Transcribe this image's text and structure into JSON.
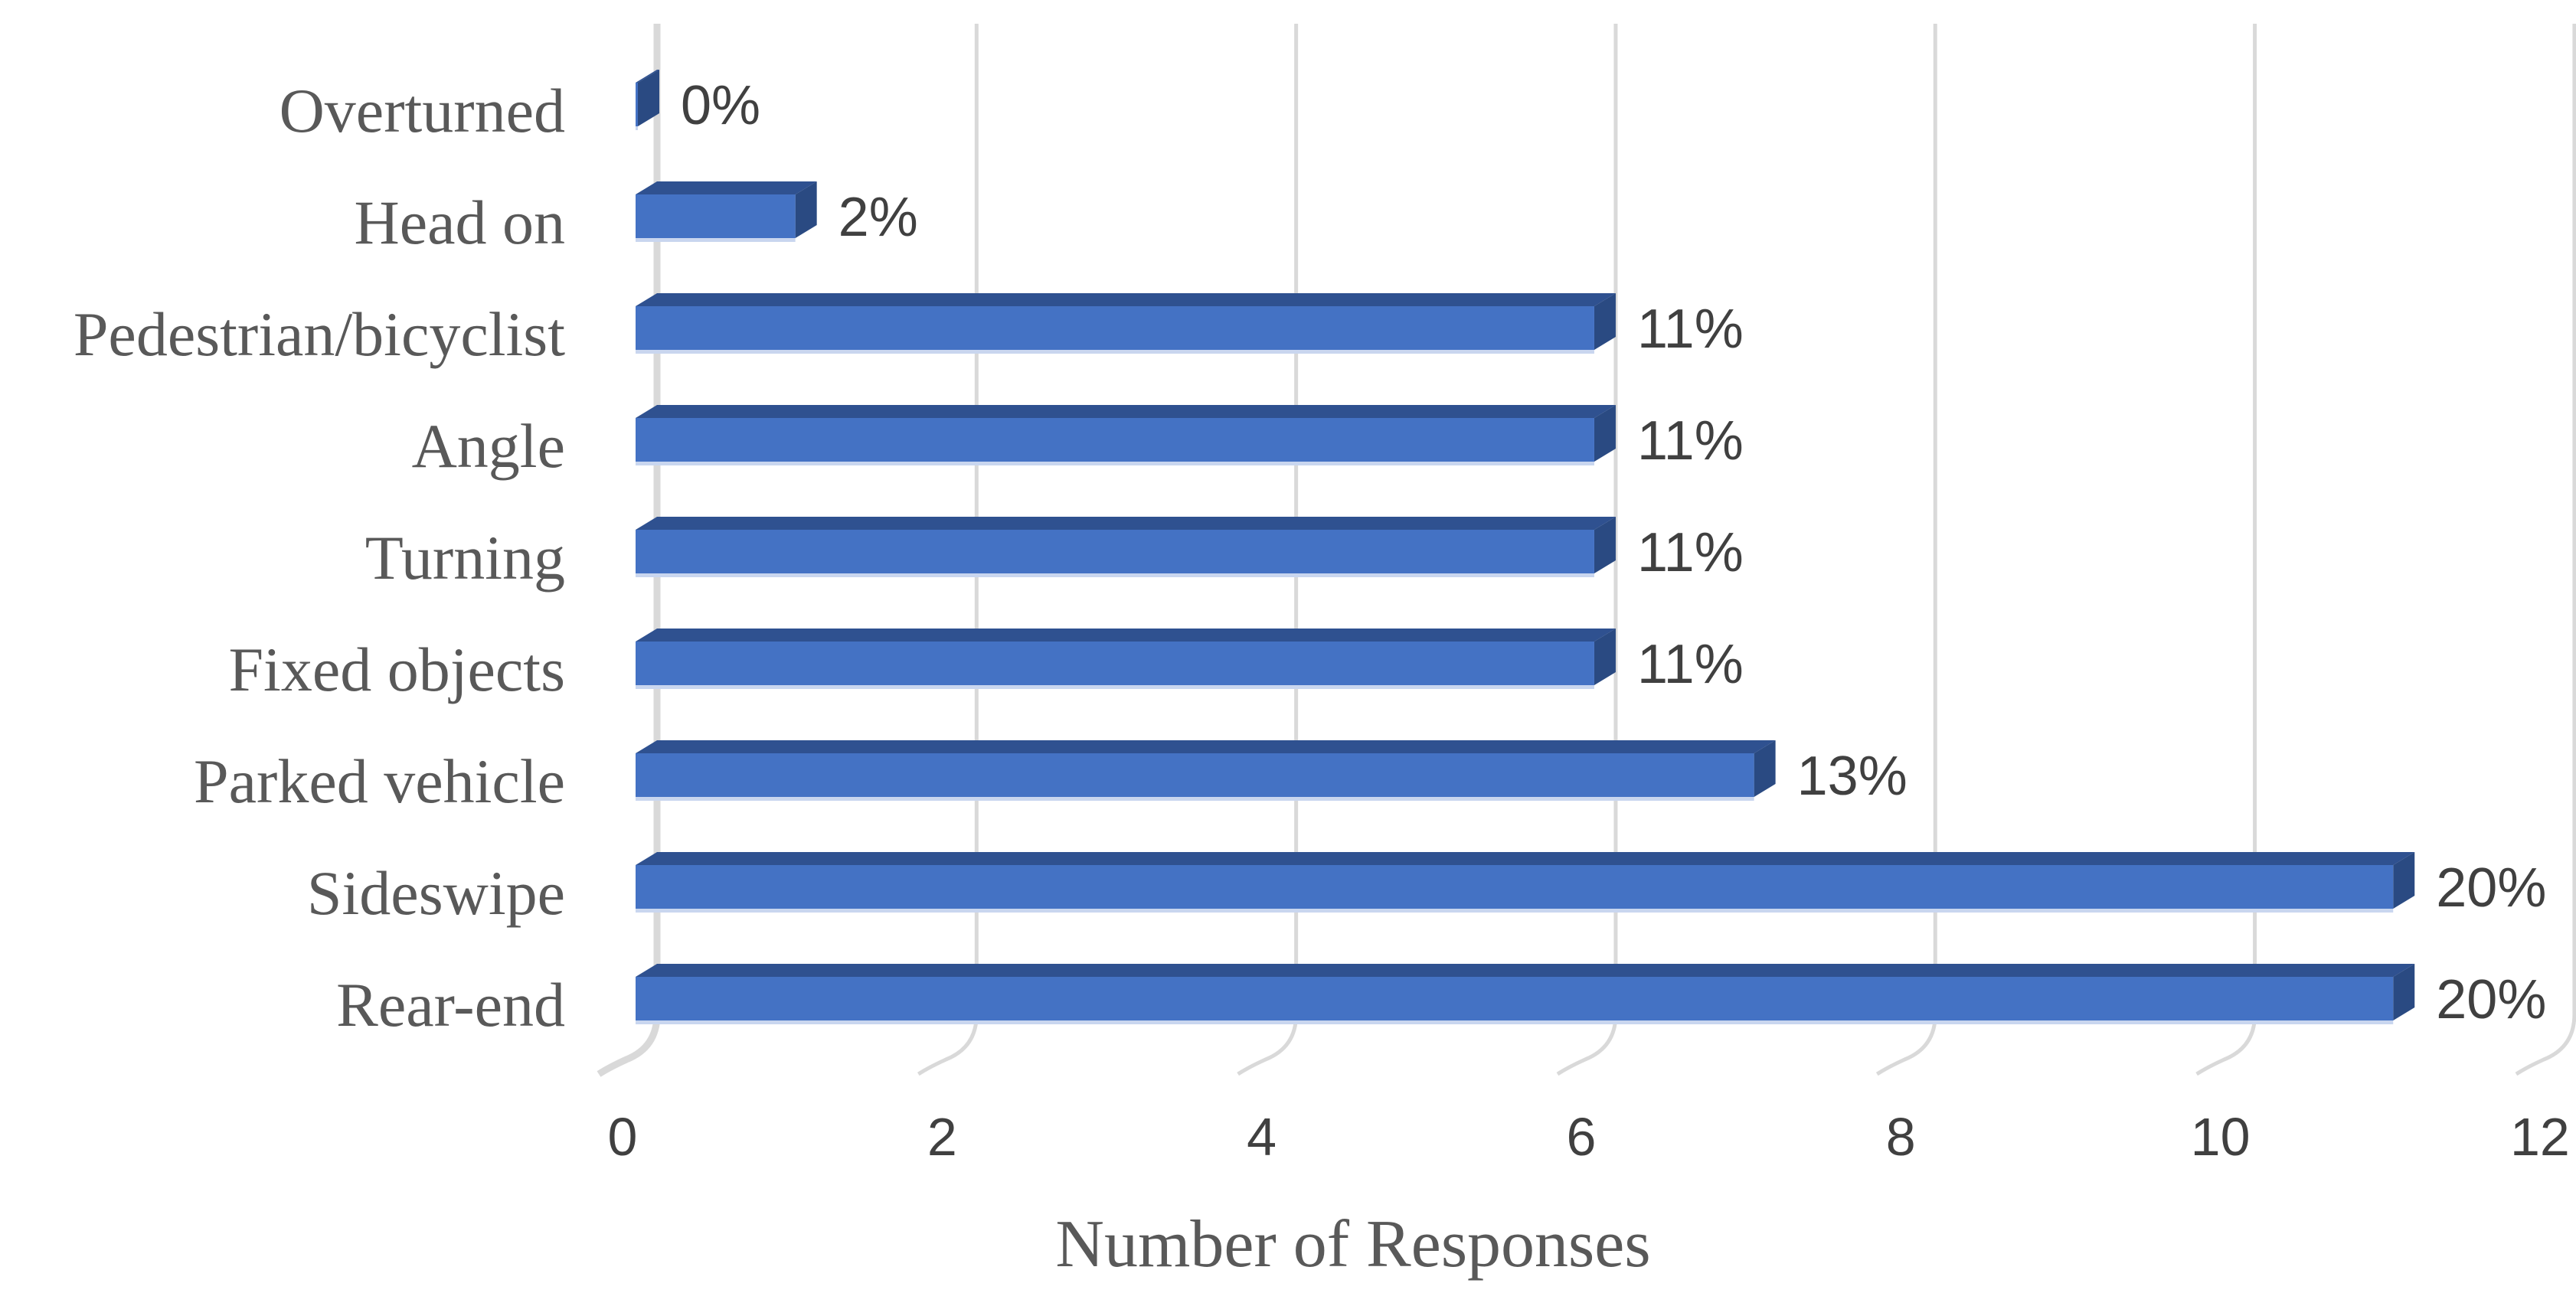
{
  "chart_data": {
    "type": "bar",
    "orientation": "horizontal",
    "style": "3d-bevel",
    "title": "",
    "xlabel": "Number of Responses",
    "ylabel": "",
    "categories": [
      "Overturned",
      "Head on",
      "Pedestrian/bicyclist",
      "Angle",
      "Turning",
      "Fixed objects",
      "Parked vehicle",
      "Sideswipe",
      "Rear-end"
    ],
    "values": [
      0,
      1,
      6,
      6,
      6,
      6,
      7,
      11,
      11
    ],
    "data_labels": [
      "0%",
      "2%",
      "11%",
      "11%",
      "11%",
      "11%",
      "13%",
      "20%",
      "20%"
    ],
    "x_ticks": [
      0,
      2,
      4,
      6,
      8,
      10,
      12
    ],
    "xlim": [
      0,
      12
    ],
    "grid": true,
    "legend": false,
    "series_name": "Number of Responses"
  },
  "colors": {
    "background": "#ffffff",
    "bar_face": "#4472c4",
    "bar_top": "#2f5190",
    "bar_side": "#2a4a82",
    "bar_bottom_edge": "#c9d6ef",
    "gridline": "#d9d9d9",
    "category_label": "#595959",
    "axis_title": "#595959",
    "tick_label": "#404040",
    "data_label": "#404040"
  }
}
